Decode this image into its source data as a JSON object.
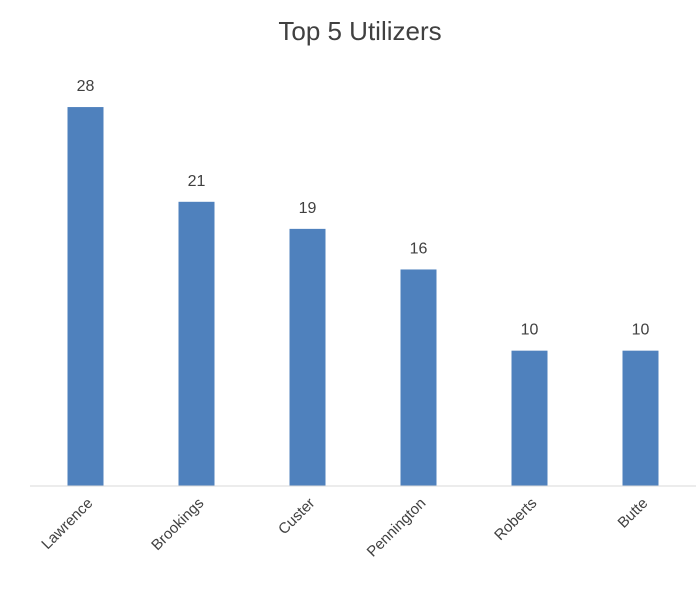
{
  "chart_data": {
    "type": "bar",
    "title": "Top 5 Utilizers",
    "categories": [
      "Lawrence",
      "Brookings",
      "Custer",
      "Pennington",
      "Roberts",
      "Butte"
    ],
    "values": [
      28,
      21,
      19,
      16,
      10,
      10
    ],
    "color": "#4f81bd",
    "ylim": [
      0,
      30
    ]
  }
}
